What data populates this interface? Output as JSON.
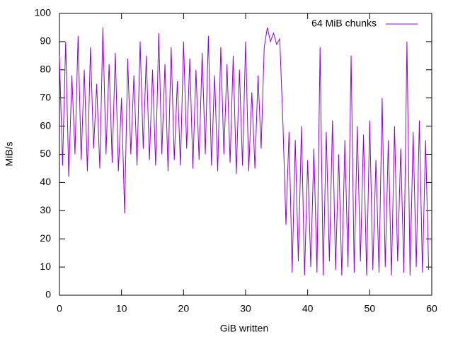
{
  "chart_data": {
    "type": "line",
    "xlabel": "GiB written",
    "ylabel": "MiB/s",
    "x": [
      0,
      0.5,
      1,
      1.5,
      2,
      2.5,
      3,
      3.5,
      4,
      4.5,
      5,
      5.5,
      6,
      6.5,
      7,
      7.5,
      8,
      8.5,
      9,
      9.5,
      10,
      10.5,
      11,
      11.5,
      12,
      12.5,
      13,
      13.5,
      14,
      14.5,
      15,
      15.5,
      16,
      16.5,
      17,
      17.5,
      18,
      18.5,
      19,
      19.5,
      20,
      20.5,
      21,
      21.5,
      22,
      22.5,
      23,
      23.5,
      24,
      24.5,
      25,
      25.5,
      26,
      26.5,
      27,
      27.5,
      28,
      28.5,
      29,
      29.5,
      30,
      30.5,
      31,
      31.5,
      32,
      32.5,
      33,
      33.5,
      34,
      34.5,
      35,
      35.5,
      36,
      36.5,
      37,
      37.5,
      38,
      38.5,
      39,
      39.5,
      40,
      40.5,
      41,
      41.5,
      42,
      42.5,
      43,
      43.5,
      44,
      44.5,
      45,
      45.5,
      46,
      46.5,
      47,
      47.5,
      48,
      48.5,
      49,
      49.5,
      50,
      50.5,
      51,
      51.5,
      52,
      52.5,
      53,
      53.5,
      54,
      54.5,
      55,
      55.5,
      56,
      56.5,
      57,
      57.5,
      58,
      58.5,
      59,
      59.5
    ],
    "series": [
      {
        "name": "64 MiB chunks",
        "color": "#9400d3",
        "values": [
          85,
          46,
          90,
          42,
          78,
          50,
          92,
          48,
          80,
          44,
          88,
          52,
          75,
          45,
          95,
          50,
          82,
          47,
          86,
          44,
          70,
          29,
          84,
          50,
          78,
          46,
          90,
          52,
          85,
          48,
          80,
          46,
          93,
          50,
          82,
          44,
          88,
          48,
          76,
          46,
          90,
          52,
          84,
          45,
          80,
          48,
          86,
          50,
          92,
          46,
          78,
          44,
          88,
          50,
          82,
          47,
          85,
          43,
          80,
          46,
          90,
          44,
          72,
          45,
          78,
          52,
          88,
          95,
          90,
          93,
          89,
          91,
          62,
          25,
          58,
          8,
          55,
          12,
          60,
          7,
          48,
          10,
          52,
          8,
          88,
          7,
          58,
          12,
          62,
          9,
          50,
          7,
          55,
          10,
          85,
          8,
          60,
          12,
          57,
          7,
          62,
          9,
          48,
          8,
          70,
          10,
          55,
          7,
          60,
          12,
          52,
          8,
          90,
          7,
          58,
          10,
          62,
          8,
          55,
          9
        ]
      }
    ],
    "xlim": [
      0,
      60
    ],
    "xticks": [
      0,
      10,
      20,
      30,
      40,
      50,
      60
    ],
    "ylim": [
      0,
      100
    ],
    "yticks": [
      0,
      10,
      20,
      30,
      40,
      50,
      60,
      70,
      80,
      90,
      100
    ],
    "grid": false,
    "legend": "top-right"
  }
}
